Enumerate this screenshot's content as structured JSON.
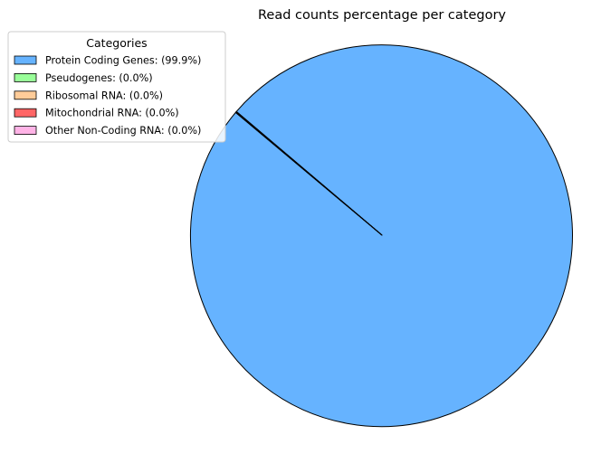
{
  "chart_data": {
    "type": "pie",
    "title": "Read counts percentage per category",
    "legend": {
      "title": "Categories",
      "placement": "top-left"
    },
    "slices": [
      {
        "name": "Protein Coding Genes",
        "label": "Protein Coding Genes: (99.9%)",
        "value": 99.9,
        "color": "#66b3ff"
      },
      {
        "name": "Pseudogenes",
        "label": "Pseudogenes: (0.0%)",
        "value": 0.03,
        "color": "#99ff99"
      },
      {
        "name": "Ribosomal RNA",
        "label": "Ribosomal RNA: (0.0%)",
        "value": 0.02,
        "color": "#ffcc99"
      },
      {
        "name": "Mitochondrial RNA",
        "label": "Mitochondrial RNA: (0.0%)",
        "value": 0.02,
        "color": "#ff6666"
      },
      {
        "name": "Other Non-Coding RNA",
        "label": "Other Non-Coding RNA: (0.0%)",
        "value": 0.03,
        "color": "#ffb3e6"
      }
    ],
    "start_angle_deg": 140,
    "edge_color": "#000000"
  }
}
